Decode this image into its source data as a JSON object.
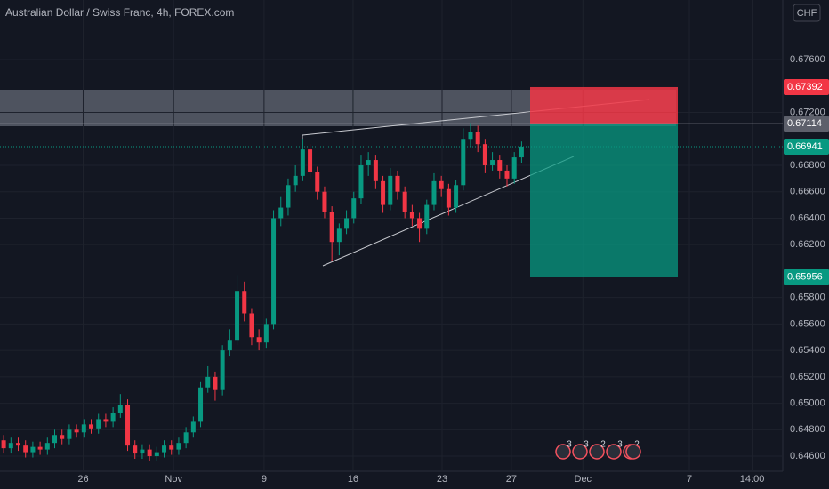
{
  "chart_data": {
    "type": "candlestick",
    "title": "Australian Dollar / Swiss Franc, 4h, FOREX.com",
    "currency": "CHF",
    "up_color": "#089981",
    "down_color": "#f23645",
    "x": [
      0,
      1,
      2,
      3,
      4,
      5,
      6,
      7,
      8,
      9,
      10,
      11,
      12,
      13,
      14,
      15,
      16,
      17,
      18,
      19,
      20,
      21,
      22,
      23,
      24,
      25,
      26,
      27,
      28,
      29,
      30,
      31,
      32,
      33,
      34,
      35,
      36,
      37,
      38,
      39,
      40,
      41,
      42,
      43,
      44,
      45,
      46,
      47,
      48,
      49,
      50,
      51,
      52,
      53,
      54,
      55,
      56,
      57,
      58,
      59,
      60,
      61,
      62,
      63,
      64,
      65,
      66,
      67,
      68,
      69,
      70,
      71
    ],
    "open": [
      0.6472,
      0.6466,
      0.647,
      0.6468,
      0.6463,
      0.6467,
      0.6465,
      0.647,
      0.6476,
      0.6473,
      0.648,
      0.6478,
      0.6484,
      0.6481,
      0.6488,
      0.6486,
      0.6493,
      0.6499,
      0.6468,
      0.6462,
      0.6465,
      0.646,
      0.6463,
      0.6468,
      0.6465,
      0.647,
      0.6478,
      0.6486,
      0.6512,
      0.652,
      0.651,
      0.654,
      0.6548,
      0.6585,
      0.6568,
      0.655,
      0.6546,
      0.656,
      0.664,
      0.6648,
      0.6665,
      0.6672,
      0.6692,
      0.6675,
      0.666,
      0.6645,
      0.6622,
      0.6632,
      0.664,
      0.6655,
      0.668,
      0.6684,
      0.6668,
      0.665,
      0.6672,
      0.666,
      0.6645,
      0.664,
      0.6632,
      0.665,
      0.6668,
      0.6662,
      0.6648,
      0.6665,
      0.67,
      0.6705,
      0.6696,
      0.668,
      0.6684,
      0.6676,
      0.667,
      0.6686
    ],
    "high": [
      0.6476,
      0.6474,
      0.6474,
      0.6472,
      0.6471,
      0.6471,
      0.6474,
      0.648,
      0.648,
      0.6484,
      0.6484,
      0.6488,
      0.6488,
      0.6492,
      0.6492,
      0.6497,
      0.6507,
      0.6503,
      0.6472,
      0.6469,
      0.6469,
      0.6467,
      0.6472,
      0.6472,
      0.6474,
      0.6482,
      0.649,
      0.6516,
      0.6528,
      0.6524,
      0.6544,
      0.6556,
      0.6597,
      0.6592,
      0.6572,
      0.6556,
      0.6564,
      0.6646,
      0.6656,
      0.667,
      0.668,
      0.67,
      0.6696,
      0.6679,
      0.6664,
      0.6649,
      0.6636,
      0.6646,
      0.666,
      0.6688,
      0.669,
      0.6688,
      0.6672,
      0.6678,
      0.6676,
      0.6664,
      0.665,
      0.6644,
      0.6654,
      0.6674,
      0.6672,
      0.6666,
      0.6669,
      0.6708,
      0.6712,
      0.671,
      0.67,
      0.669,
      0.6688,
      0.668,
      0.669,
      0.6698
    ],
    "low": [
      0.6462,
      0.6462,
      0.6464,
      0.6459,
      0.6459,
      0.6461,
      0.6461,
      0.6466,
      0.6469,
      0.6469,
      0.6474,
      0.6474,
      0.6477,
      0.6477,
      0.6482,
      0.6482,
      0.6489,
      0.6464,
      0.6458,
      0.6458,
      0.6456,
      0.6456,
      0.6459,
      0.6461,
      0.6461,
      0.6466,
      0.6474,
      0.6482,
      0.6508,
      0.6502,
      0.6506,
      0.6536,
      0.6544,
      0.6562,
      0.6544,
      0.654,
      0.6542,
      0.6556,
      0.6634,
      0.6642,
      0.666,
      0.6668,
      0.667,
      0.6654,
      0.664,
      0.6608,
      0.6612,
      0.6628,
      0.6636,
      0.6651,
      0.6672,
      0.6662,
      0.6644,
      0.6646,
      0.6654,
      0.664,
      0.6634,
      0.6622,
      0.6628,
      0.6646,
      0.6656,
      0.6642,
      0.6644,
      0.6661,
      0.6694,
      0.669,
      0.6674,
      0.6676,
      0.667,
      0.6664,
      0.6666,
      0.6682
    ],
    "close": [
      0.6466,
      0.647,
      0.6468,
      0.6463,
      0.6467,
      0.6465,
      0.647,
      0.6476,
      0.6473,
      0.648,
      0.6478,
      0.6484,
      0.6481,
      0.6488,
      0.6486,
      0.6493,
      0.6499,
      0.6468,
      0.6462,
      0.6465,
      0.646,
      0.6463,
      0.6468,
      0.6465,
      0.647,
      0.6478,
      0.6486,
      0.6512,
      0.652,
      0.651,
      0.654,
      0.6548,
      0.6585,
      0.6568,
      0.655,
      0.6546,
      0.656,
      0.664,
      0.6648,
      0.6665,
      0.6672,
      0.6692,
      0.6675,
      0.666,
      0.6645,
      0.6622,
      0.6632,
      0.664,
      0.6655,
      0.668,
      0.6684,
      0.6668,
      0.665,
      0.6672,
      0.666,
      0.6645,
      0.664,
      0.6632,
      0.665,
      0.6668,
      0.6662,
      0.6648,
      0.6665,
      0.67,
      0.6705,
      0.6696,
      0.668,
      0.6684,
      0.6676,
      0.667,
      0.6686,
      0.66941
    ],
    "xlim": [
      -0.5,
      106.8
    ],
    "xticks": [
      {
        "value": 10.9,
        "label": "26"
      },
      {
        "value": 23.3,
        "label": "Nov"
      },
      {
        "value": 35.7,
        "label": "9"
      },
      {
        "value": 47.9,
        "label": "16"
      },
      {
        "value": 60.1,
        "label": "23"
      },
      {
        "value": 69.6,
        "label": "27"
      },
      {
        "value": 79.4,
        "label": "Dec"
      },
      {
        "value": 94.0,
        "label": "7"
      },
      {
        "value": 102.6,
        "label": "14:00"
      }
    ],
    "ylim": [
      0.64486,
      0.68051
    ],
    "yticks": [
      {
        "value": 0.676,
        "label": "0.67600"
      },
      {
        "value": 0.672,
        "label": "0.67200"
      },
      {
        "value": 0.668,
        "label": "0.66800"
      },
      {
        "value": 0.666,
        "label": "0.66600"
      },
      {
        "value": 0.664,
        "label": "0.66400"
      },
      {
        "value": 0.662,
        "label": "0.66200"
      },
      {
        "value": 0.658,
        "label": "0.65800"
      },
      {
        "value": 0.656,
        "label": "0.65600"
      },
      {
        "value": 0.654,
        "label": "0.65400"
      },
      {
        "value": 0.652,
        "label": "0.65200"
      },
      {
        "value": 0.65,
        "label": "0.65000"
      },
      {
        "value": 0.648,
        "label": "0.64800"
      },
      {
        "value": 0.646,
        "label": "0.64600"
      }
    ],
    "price_labels": [
      {
        "value": 0.67392,
        "label": "0.67392",
        "color": "#f23645"
      },
      {
        "value": 0.67114,
        "label": "0.67114",
        "color": "#5d606b"
      },
      {
        "value": 0.66941,
        "label": "0.66941",
        "color": "#089981"
      },
      {
        "value": 0.65956,
        "label": "0.65956",
        "color": "#089981"
      }
    ],
    "event_badges": [
      "3",
      "3",
      "2",
      "3",
      "2"
    ]
  }
}
